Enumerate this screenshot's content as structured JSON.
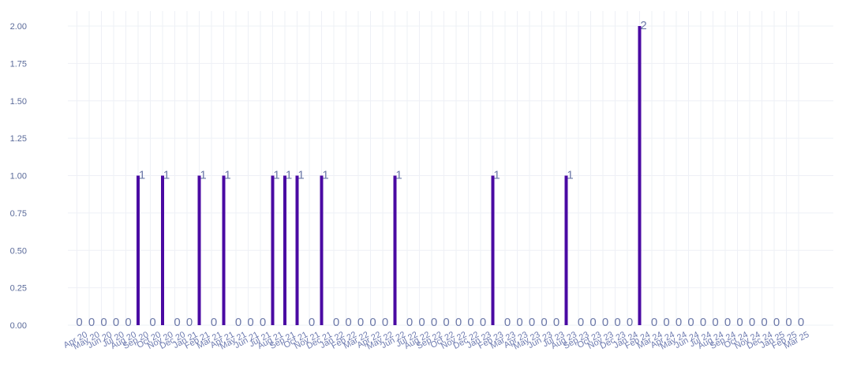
{
  "chart_data": {
    "type": "bar",
    "categories": [
      "Apr 20",
      "May 20",
      "Jun 20",
      "Jul 20",
      "Aug 20",
      "Sep 20",
      "Oct 20",
      "Nov 20",
      "Dec 20",
      "Jan 21",
      "Feb 21",
      "Mar 21",
      "Apr 21",
      "May 21",
      "Jun 21",
      "Jul 21",
      "Aug 21",
      "Sep 21",
      "Oct 21",
      "Nov 21",
      "Dec 21",
      "Jan 22",
      "Feb 22",
      "Mar 22",
      "Apr 22",
      "May 22",
      "Jun 22",
      "Jul 22",
      "Aug 22",
      "Sep 22",
      "Oct 22",
      "Nov 22",
      "Dec 22",
      "Jan 23",
      "Feb 23",
      "Mar 23",
      "Apr 23",
      "May 23",
      "Jun 23",
      "Jul 23",
      "Aug 23",
      "Sep 23",
      "Oct 23",
      "Nov 23",
      "Dec 23",
      "Jan 24",
      "Feb 24",
      "Mar 24",
      "Apr 24",
      "May 24",
      "Jun 24",
      "Jul 24",
      "Aug 24",
      "Sep 24",
      "Oct 24",
      "Nov 24",
      "Dec 24",
      "Jan 25",
      "Feb 25",
      "Mar 25"
    ],
    "values": [
      0,
      0,
      0,
      0,
      0,
      1,
      0,
      1,
      0,
      0,
      1,
      0,
      1,
      0,
      0,
      0,
      1,
      1,
      1,
      0,
      1,
      0,
      0,
      0,
      0,
      0,
      1,
      0,
      0,
      0,
      0,
      0,
      0,
      0,
      1,
      0,
      0,
      0,
      0,
      0,
      1,
      0,
      0,
      0,
      0,
      0,
      2,
      0,
      0,
      0,
      0,
      0,
      0,
      0,
      0,
      0,
      0,
      0,
      0,
      0
    ],
    "title": "",
    "xlabel": "",
    "ylabel": "",
    "ylim": [
      0,
      2.1
    ],
    "yticks": [
      "0.00",
      "0.25",
      "0.50",
      "0.75",
      "1.00",
      "1.25",
      "1.50",
      "1.75",
      "2.00"
    ],
    "grid": true,
    "legend": "none",
    "bar_color": "#4a0aa3",
    "label_color": "#6b78a8"
  }
}
